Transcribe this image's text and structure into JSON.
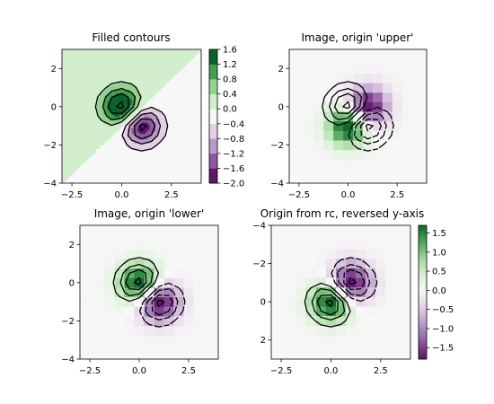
{
  "chart_data": [
    {
      "type": "contour",
      "title": "Filled contours",
      "xlim": [
        -3,
        4
      ],
      "ylim": [
        -4,
        3
      ],
      "y_reversed": false,
      "render": "filled",
      "x_ticks": [
        -2.5,
        0.0,
        2.5
      ],
      "x_tick_labels": [
        "−2.5",
        "0.0",
        "2.5"
      ],
      "y_ticks": [
        -4,
        -2,
        0,
        2
      ],
      "y_tick_labels": [
        "−4",
        "−2",
        "0",
        "2"
      ],
      "highlight_level": 0.0,
      "highlight_color": "#007f00",
      "colorbar": {
        "levels": [
          -2.0,
          -1.6,
          -1.2,
          -0.8,
          -0.4,
          0.0,
          0.4,
          0.8,
          1.2,
          1.6
        ],
        "tick_labels": [
          "−2.0",
          "−1.6",
          "−1.2",
          "−0.8",
          "−0.4",
          "0.0",
          "0.4",
          "0.8",
          "1.2",
          "1.6"
        ]
      }
    },
    {
      "type": "image",
      "title": "Image, origin 'upper'",
      "xlim": [
        -3,
        4
      ],
      "ylim": [
        -4,
        3
      ],
      "y_reversed": false,
      "image_flipped": true,
      "x_ticks": [
        -2.5,
        0.0,
        2.5
      ],
      "x_tick_labels": [
        "−2.5",
        "0.0",
        "2.5"
      ],
      "y_ticks": [
        -4,
        -2,
        0,
        2
      ],
      "y_tick_labels": [
        "−4",
        "−2",
        "0",
        "2"
      ]
    },
    {
      "type": "image",
      "title": "Image, origin 'lower'",
      "xlim": [
        -3,
        4
      ],
      "ylim": [
        -4,
        3
      ],
      "y_reversed": false,
      "image_flipped": false,
      "x_ticks": [
        -2.5,
        0.0,
        2.5
      ],
      "x_tick_labels": [
        "−2.5",
        "0.0",
        "2.5"
      ],
      "y_ticks": [
        -4,
        -2,
        0,
        2
      ],
      "y_tick_labels": [
        "−4",
        "−2",
        "0",
        "2"
      ]
    },
    {
      "type": "image",
      "title": "Origin from rc, reversed y-axis",
      "xlim": [
        -3,
        4
      ],
      "ylim": [
        -4,
        3
      ],
      "y_reversed": true,
      "image_flipped": false,
      "x_ticks": [
        -2.5,
        0.0,
        2.5
      ],
      "x_tick_labels": [
        "−2.5",
        "0.0",
        "2.5"
      ],
      "y_ticks": [
        -4,
        -2,
        0,
        2
      ],
      "y_tick_labels": [
        "−4",
        "−2",
        "0",
        "2"
      ],
      "colorbar": {
        "range": [
          -1.8,
          1.7
        ],
        "ticks": [
          -1.5,
          -1.0,
          -0.5,
          0.0,
          0.5,
          1.0,
          1.5
        ],
        "tick_labels": [
          "−1.5",
          "−1.0",
          "−0.5",
          "0.0",
          "0.5",
          "1.0",
          "1.5"
        ]
      }
    }
  ],
  "field": {
    "function": "Z = exp(-x^2 - y^2) - exp(-(x-1)^2 - (y-1)^2), scaled x2, y mapped through -y",
    "grid_x": [
      -3,
      4
    ],
    "grid_y": [
      -4,
      3
    ],
    "step": 0.5,
    "contour_levels": [
      -1.6,
      -1.2,
      -0.8,
      -0.4,
      0.4,
      0.8,
      1.2,
      1.6
    ],
    "negative_line_style": "dashed"
  },
  "colors": {
    "line": "#000000",
    "positive": "#1b7837",
    "negative": "#762a83",
    "neutral": "#f7f7f7"
  }
}
